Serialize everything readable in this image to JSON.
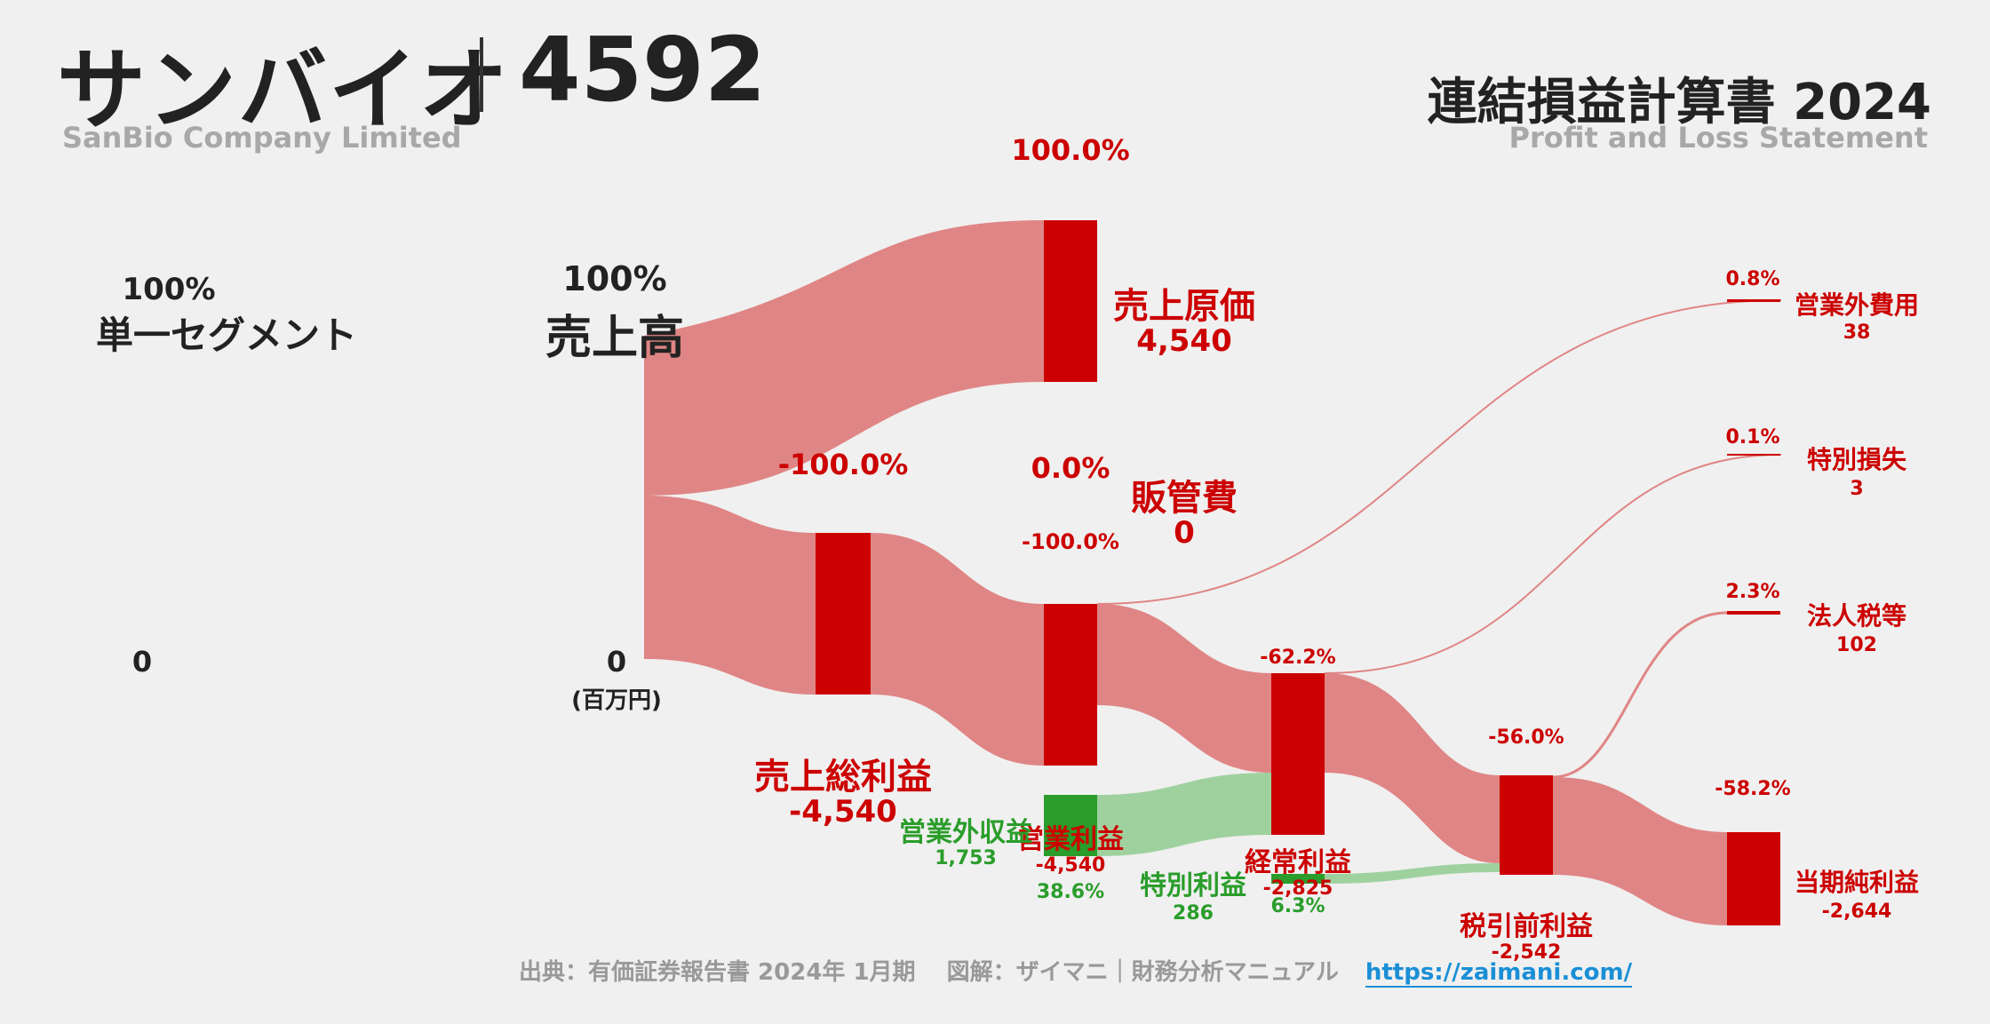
{
  "header": {
    "company": "サンバイオ",
    "code": "4592",
    "company_en": "SanBio Company Limited",
    "report_title": "連結損益計算書 2024",
    "report_en": "Profit and Loss Statement"
  },
  "unit_note": "(百万円)",
  "footer": {
    "source": "出典：有価証券報告書 2024年 1月期　 図解：ザイマニ｜財務分析マニュアル",
    "link": "https://zaimani.com/"
  },
  "colors": {
    "loss": "#cc0000",
    "profit": "#2a9d2a",
    "loss_flow": "#e08585",
    "profit_flow": "#9fd19f"
  },
  "chart_data": {
    "type": "sankey",
    "nodes": [
      {
        "id": "segment",
        "name": "単一セグメント",
        "value": "0",
        "pct": "100%",
        "kind": "dark"
      },
      {
        "id": "sales",
        "name": "売上高",
        "value": "0",
        "pct": "100%",
        "kind": "dark"
      },
      {
        "id": "cogs",
        "name": "売上原価",
        "value": "4,540",
        "pct": "100.0%",
        "kind": "loss"
      },
      {
        "id": "gross",
        "name": "売上総利益",
        "value": "-4,540",
        "pct": "-100.0%",
        "kind": "loss"
      },
      {
        "id": "sga",
        "name": "販管費",
        "value": "0",
        "pct": "0.0%",
        "kind": "loss"
      },
      {
        "id": "operating",
        "name": "営業利益",
        "value": "-4,540",
        "pct": "-100.0%",
        "kind": "loss"
      },
      {
        "id": "nonop_income",
        "name": "営業外収益",
        "value": "1,753",
        "pct": "38.6%",
        "kind": "profit"
      },
      {
        "id": "nonop_expense",
        "name": "営業外費用",
        "value": "38",
        "pct": "0.8%",
        "kind": "loss"
      },
      {
        "id": "ordinary",
        "name": "経常利益",
        "value": "-2,825",
        "pct": "-62.2%",
        "kind": "loss"
      },
      {
        "id": "extra_income",
        "name": "特別利益",
        "value": "286",
        "pct": "6.3%",
        "kind": "profit"
      },
      {
        "id": "extra_loss",
        "name": "特別損失",
        "value": "3",
        "pct": "0.1%",
        "kind": "loss"
      },
      {
        "id": "pretax",
        "name": "税引前利益",
        "value": "-2,542",
        "pct": "-56.0%",
        "kind": "loss"
      },
      {
        "id": "tax",
        "name": "法人税等",
        "value": "102",
        "pct": "2.3%",
        "kind": "loss"
      },
      {
        "id": "net",
        "name": "当期純利益",
        "value": "-2,644",
        "pct": "-58.2%",
        "kind": "loss"
      }
    ]
  }
}
